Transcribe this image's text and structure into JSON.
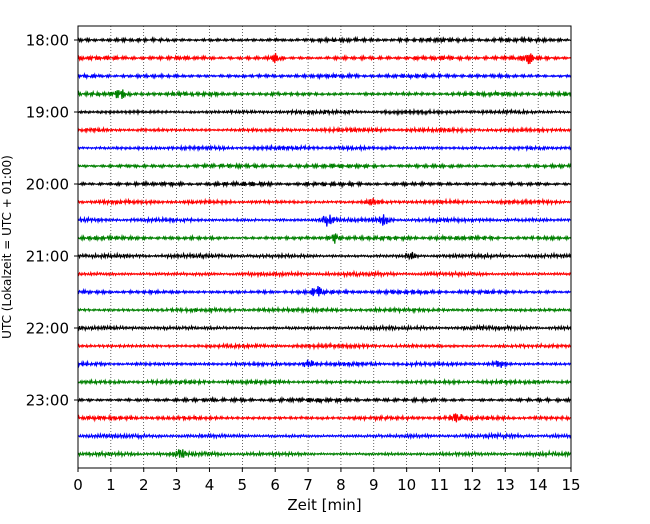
{
  "chart_data": {
    "type": "line",
    "title": "",
    "xlabel": "Zeit  [min]",
    "ylabel": "UTC (Lokalzeit = UTC + 01:00)",
    "xlim": [
      0,
      15
    ],
    "x_ticks": [
      "0",
      "1",
      "2",
      "3",
      "4",
      "5",
      "6",
      "7",
      "8",
      "9",
      "10",
      "11",
      "12",
      "13",
      "14",
      "15"
    ],
    "y_ticks": [
      {
        "label": "18:00",
        "hour": 18.0
      },
      {
        "label": "19:00",
        "hour": 19.0
      },
      {
        "label": "20:00",
        "hour": 20.0
      },
      {
        "label": "21:00",
        "hour": 21.0
      },
      {
        "label": "22:00",
        "hour": 22.0
      },
      {
        "label": "23:00",
        "hour": 23.0
      }
    ],
    "ylim_hours": [
      17.82,
      24.0
    ],
    "grid": "vertical dotted lines at each minute",
    "trace_interval_minutes": 15,
    "trace_start_hour": 18.0,
    "trace_count": 24,
    "trace_colors": [
      "#000000",
      "#ff0000",
      "#0000ff",
      "#008000"
    ],
    "noise_events": [
      {
        "trace": 1,
        "minute": 6.0,
        "amp": 1.8
      },
      {
        "trace": 1,
        "minute": 13.7,
        "amp": 2.0
      },
      {
        "trace": 3,
        "minute": 1.3,
        "amp": 1.6
      },
      {
        "trace": 9,
        "minute": 9.0,
        "amp": 1.8
      },
      {
        "trace": 10,
        "minute": 7.6,
        "amp": 2.2
      },
      {
        "trace": 10,
        "minute": 9.3,
        "amp": 2.0
      },
      {
        "trace": 11,
        "minute": 7.8,
        "amp": 1.8
      },
      {
        "trace": 12,
        "minute": 10.1,
        "amp": 1.6
      },
      {
        "trace": 14,
        "minute": 7.3,
        "amp": 2.2
      },
      {
        "trace": 18,
        "minute": 7.0,
        "amp": 1.6
      },
      {
        "trace": 18,
        "minute": 12.8,
        "amp": 1.5
      },
      {
        "trace": 21,
        "minute": 11.5,
        "amp": 1.5
      },
      {
        "trace": 23,
        "minute": 3.1,
        "amp": 1.5
      }
    ]
  }
}
